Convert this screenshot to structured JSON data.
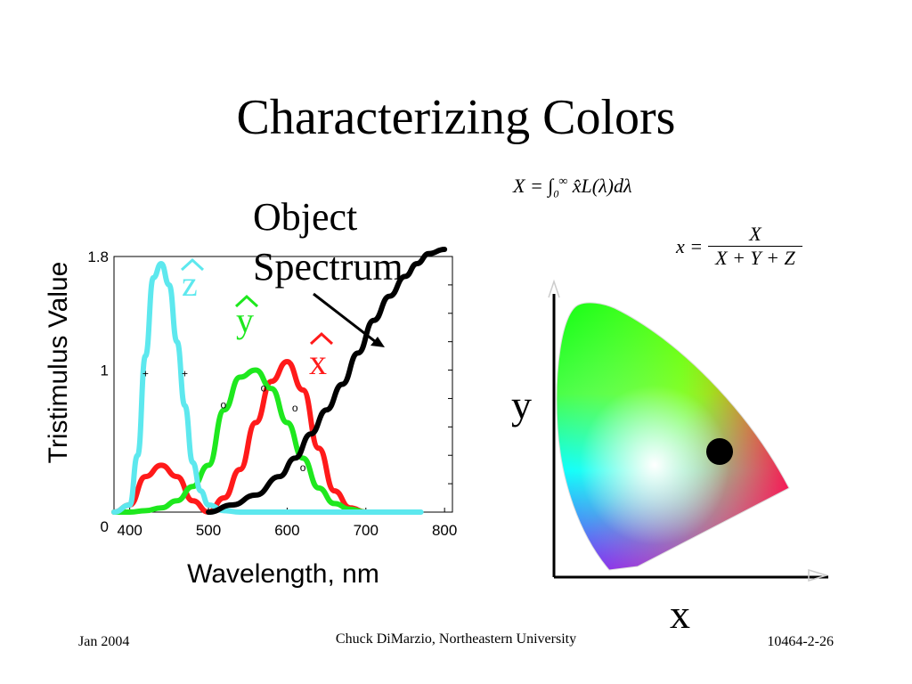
{
  "slide": {
    "title": "Characterizing Colors",
    "object_spectrum_label": [
      "Object",
      "Spectrum"
    ],
    "formula_X": "X = ∫₀^∞ x̂L(λ)dλ",
    "formula_x": "x = X / (X + Y + Z)",
    "chromaticity": {
      "x_axis_label": "x",
      "y_axis_label": "y"
    },
    "footer": {
      "left": "Jan 2004",
      "center": "Chuck DiMarzio, Northeastern University",
      "right": "10464-2-26"
    }
  },
  "chart_data": {
    "type": "line",
    "ylabel": "Tristimulus Value",
    "xlabel": "Wavelength, nm",
    "x_ticks": [
      "400",
      "500",
      "600",
      "700",
      "800"
    ],
    "y_ticks": [
      "0",
      "1",
      "1.8"
    ],
    "ylim": [
      0,
      1.8
    ],
    "xlim": [
      380,
      810
    ],
    "series": [
      {
        "name": "x̂",
        "color": "#ff1a1a",
        "x": [
          380,
          400,
          420,
          440,
          460,
          480,
          500,
          520,
          540,
          560,
          580,
          600,
          620,
          640,
          660,
          680,
          700
        ],
        "y": [
          0.0,
          0.05,
          0.25,
          0.33,
          0.25,
          0.08,
          0.0,
          0.1,
          0.3,
          0.63,
          0.92,
          1.06,
          0.86,
          0.45,
          0.15,
          0.03,
          0.0
        ]
      },
      {
        "name": "ŷ",
        "color": "#1ee81e",
        "x": [
          380,
          400,
          420,
          440,
          460,
          480,
          500,
          520,
          540,
          560,
          580,
          600,
          620,
          640,
          660,
          680,
          700
        ],
        "y": [
          0.0,
          0.0,
          0.01,
          0.03,
          0.08,
          0.18,
          0.33,
          0.72,
          0.95,
          1.0,
          0.87,
          0.63,
          0.38,
          0.17,
          0.06,
          0.02,
          0.0
        ]
      },
      {
        "name": "ẑ",
        "color": "#5de8ee",
        "x": [
          380,
          400,
          410,
          420,
          430,
          440,
          450,
          460,
          470,
          480,
          490,
          500,
          520,
          540,
          560,
          600,
          700,
          770
        ],
        "y": [
          0.0,
          0.05,
          0.4,
          1.1,
          1.65,
          1.75,
          1.6,
          1.2,
          0.75,
          0.35,
          0.15,
          0.05,
          0.01,
          0.0,
          0.0,
          0.0,
          0.0,
          0.0
        ]
      },
      {
        "name": "Object Spectrum",
        "color": "#000000",
        "x": [
          500,
          530,
          560,
          590,
          610,
          630,
          650,
          670,
          690,
          710,
          730,
          750,
          765,
          780,
          800
        ],
        "y": [
          0.0,
          0.05,
          0.12,
          0.25,
          0.38,
          0.55,
          0.72,
          0.9,
          1.12,
          1.35,
          1.52,
          1.66,
          1.75,
          1.82,
          1.85
        ]
      }
    ],
    "legend_labels": [
      "x̂",
      "ŷ",
      "ẑ"
    ]
  }
}
